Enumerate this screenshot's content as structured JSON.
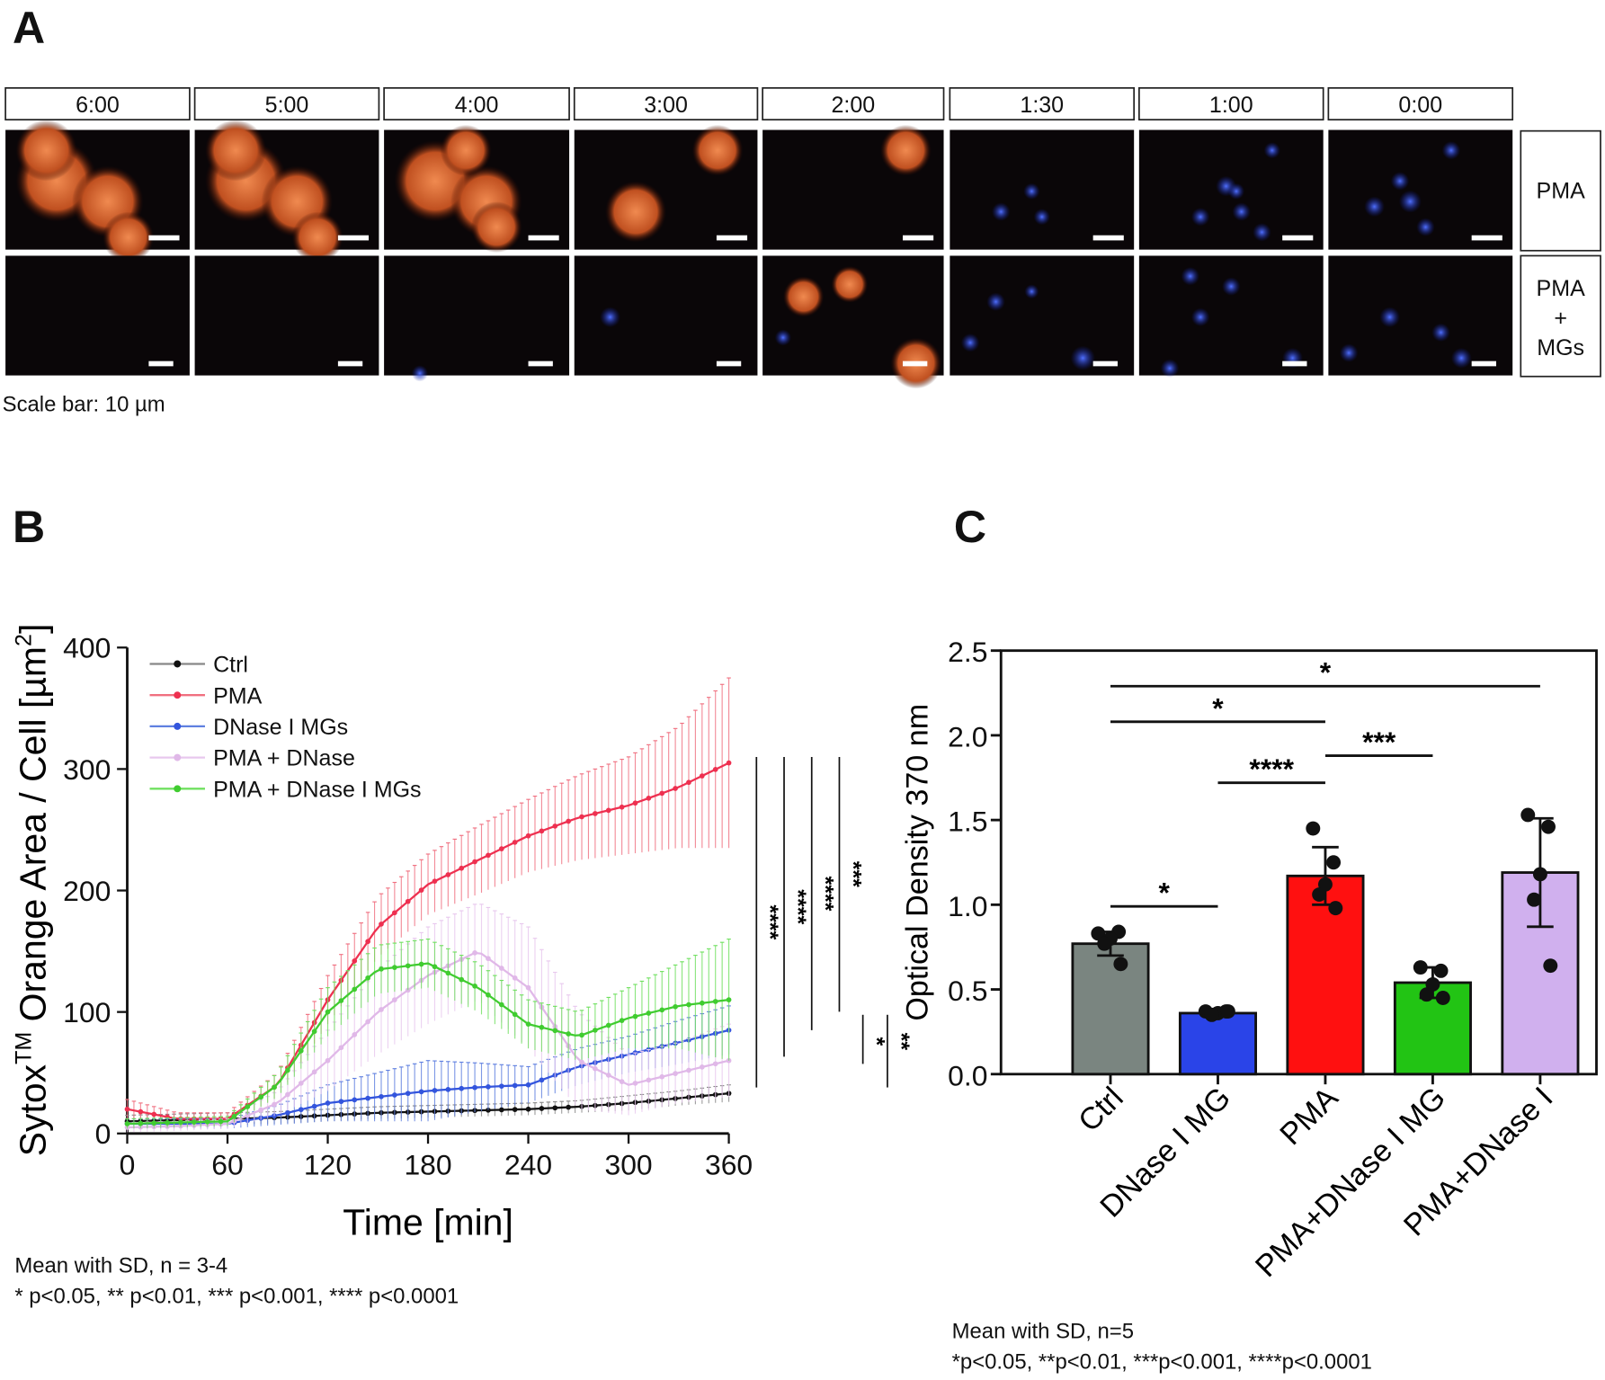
{
  "panel_a": {
    "label": "A",
    "time_labels": [
      "6:00",
      "5:00",
      "4:00",
      "3:00",
      "2:00",
      "1:30",
      "1:00",
      "0:00"
    ],
    "row_labels": [
      [
        "PMA"
      ],
      [
        "PMA",
        "+",
        "MGs"
      ]
    ],
    "scale_note": "Scale bar: 10 µm"
  },
  "chart_data": [
    {
      "panel": "B",
      "type": "line",
      "xlabel": "Time [min]",
      "ylabel_main": "Sytox",
      "ylabel_sup": "TM",
      "ylabel_rest": " Orange Area / Cell [µm",
      "ylabel_sup2": "2",
      "ylabel_end": "]",
      "xlim": [
        0,
        360
      ],
      "ylim": [
        0,
        400
      ],
      "xticks": [
        "0",
        "60",
        "120",
        "180",
        "240",
        "300",
        "360"
      ],
      "yticks": [
        "0",
        "100",
        "200",
        "300",
        "400"
      ],
      "legend_position": "top-left",
      "x": [
        0,
        30,
        60,
        90,
        120,
        150,
        180,
        210,
        240,
        270,
        300,
        330,
        360
      ],
      "series": [
        {
          "name": "Ctrl",
          "color": "#111111",
          "line": "#888888",
          "values": [
            10,
            11,
            12,
            13,
            15,
            17,
            18,
            19,
            20,
            22,
            25,
            29,
            33
          ],
          "sd": [
            5,
            5,
            5,
            5,
            5,
            5,
            5,
            5,
            5,
            5,
            6,
            6,
            7
          ]
        },
        {
          "name": "PMA",
          "color": "#ee3050",
          "line": "#f07080",
          "values": [
            20,
            12,
            12,
            40,
            110,
            170,
            205,
            225,
            245,
            260,
            270,
            285,
            305
          ],
          "sd": [
            8,
            5,
            5,
            10,
            20,
            25,
            25,
            28,
            30,
            35,
            40,
            50,
            70
          ]
        },
        {
          "name": "DNase I MGs",
          "color": "#3355dd",
          "line": "#6080e0",
          "values": [
            8,
            8,
            8,
            15,
            25,
            30,
            35,
            38,
            40,
            55,
            65,
            75,
            85
          ],
          "sd": [
            4,
            4,
            4,
            8,
            15,
            20,
            25,
            20,
            15,
            15,
            15,
            18,
            20
          ]
        },
        {
          "name": "PMA + DNase",
          "color": "#e0b8e8",
          "line": "#e8c8ee",
          "values": [
            5,
            6,
            8,
            25,
            60,
            100,
            130,
            150,
            120,
            60,
            40,
            50,
            60
          ],
          "sd": [
            4,
            4,
            4,
            10,
            25,
            35,
            40,
            40,
            50,
            40,
            25,
            25,
            30
          ]
        },
        {
          "name": "PMA + DNase I MGs",
          "color": "#40cc30",
          "line": "#70e060",
          "values": [
            8,
            9,
            10,
            40,
            100,
            135,
            140,
            120,
            90,
            80,
            95,
            105,
            110
          ],
          "sd": [
            4,
            4,
            4,
            10,
            20,
            20,
            20,
            20,
            20,
            20,
            25,
            35,
            50
          ]
        }
      ],
      "significance": [
        "****",
        "****",
        "****",
        "***",
        "*",
        "**"
      ],
      "notes": [
        "Mean with SD, n = 3-4",
        "* p<0.05, ** p<0.01, *** p<0.001, **** p<0.0001"
      ]
    },
    {
      "panel": "C",
      "type": "bar",
      "ylabel": "Optical Density 370 nm",
      "ylim": [
        0,
        2.5
      ],
      "yticks": [
        "0.0",
        "0.5",
        "1.0",
        "1.5",
        "2.0",
        "2.5"
      ],
      "categories": [
        "Ctrl",
        "DNase I MG",
        "PMA",
        "PMA+DNase I MG",
        "PMA+DNase I"
      ],
      "values": [
        0.77,
        0.36,
        1.17,
        0.54,
        1.19
      ],
      "sd": [
        0.07,
        0.01,
        0.17,
        0.09,
        0.32
      ],
      "colors": [
        "#7a8580",
        "#2a44e8",
        "#ff1010",
        "#22c414",
        "#d0b0ee"
      ],
      "points": [
        [
          0.83,
          0.84,
          0.8,
          0.77,
          0.65
        ],
        [
          0.37,
          0.37,
          0.36,
          0.35,
          0.37
        ],
        [
          1.45,
          1.25,
          1.12,
          1.06,
          0.98
        ],
        [
          0.63,
          0.61,
          0.53,
          0.47,
          0.45
        ],
        [
          1.53,
          1.46,
          1.18,
          1.03,
          0.64
        ]
      ],
      "comparisons": [
        {
          "from": 0,
          "to": 1,
          "y": 0.99,
          "label": "*"
        },
        {
          "from": 1,
          "to": 2,
          "y": 1.72,
          "label": "****"
        },
        {
          "from": 2,
          "to": 3,
          "y": 1.88,
          "label": "***"
        },
        {
          "from": 0,
          "to": 2,
          "y": 2.08,
          "label": "*"
        },
        {
          "from": 0,
          "to": 4,
          "y": 2.29,
          "label": "*"
        }
      ],
      "notes": [
        "Mean with SD, n=5",
        "*p<0.05, **p<0.01, ***p<0.001, ****p<0.0001"
      ]
    }
  ]
}
